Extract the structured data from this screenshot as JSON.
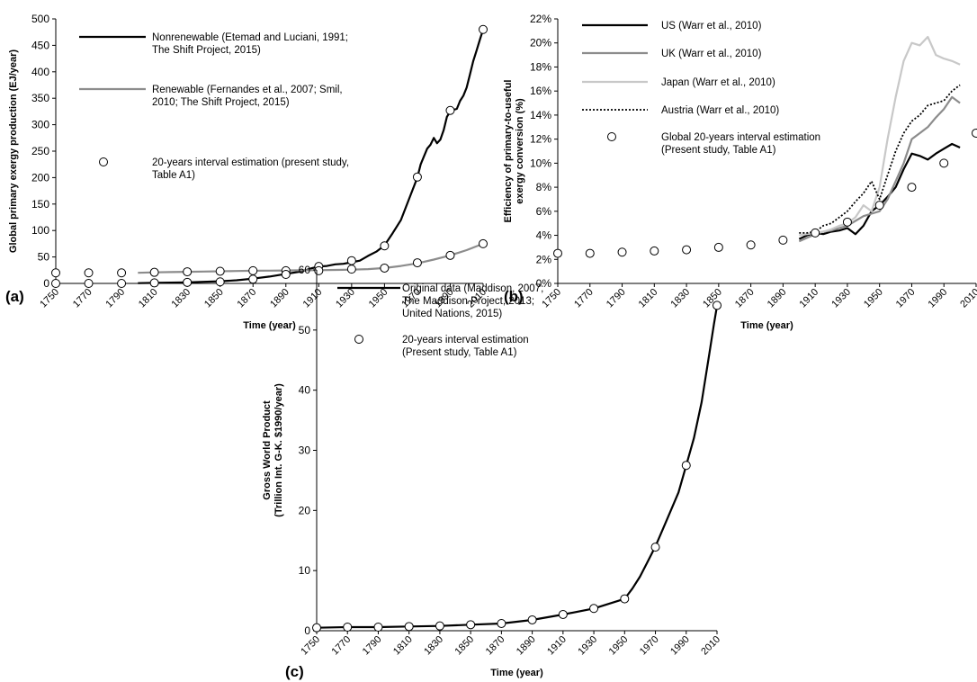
{
  "chart_data": [
    {
      "panel_label": "(a)",
      "type": "line",
      "xlabel": "Time (year)",
      "ylabel": "Global primary exergy production (EJ/year)",
      "xlim": [
        1750,
        2010
      ],
      "ylim": [
        0,
        500
      ],
      "xticks": [
        1750,
        1770,
        1790,
        1810,
        1830,
        1850,
        1870,
        1890,
        1910,
        1930,
        1950,
        1970,
        1990,
        2010
      ],
      "yticks": [
        0,
        50,
        100,
        150,
        200,
        250,
        300,
        350,
        400,
        450,
        500
      ],
      "grid": false,
      "legend_position": "top-left",
      "series": [
        {
          "name": "Nonrenewable (Etemad and Luciani, 1991; The Shift Project, 2015)",
          "color": "#000000",
          "x": [
            1800,
            1810,
            1820,
            1830,
            1840,
            1850,
            1860,
            1870,
            1880,
            1890,
            1900,
            1905,
            1910,
            1915,
            1920,
            1925,
            1930,
            1935,
            1940,
            1945,
            1950,
            1955,
            1960,
            1965,
            1970,
            1972,
            1974,
            1976,
            1978,
            1980,
            1982,
            1984,
            1986,
            1988,
            1990,
            1992,
            1994,
            1996,
            1998,
            2000,
            2002,
            2004,
            2006,
            2008,
            2010
          ],
          "y": [
            0.5,
            1,
            1.5,
            2,
            3,
            4,
            6,
            9,
            13,
            18,
            23,
            28,
            32,
            33,
            36,
            37,
            40,
            43,
            52,
            60,
            72,
            95,
            120,
            160,
            200,
            225,
            240,
            255,
            262,
            275,
            265,
            272,
            290,
            315,
            325,
            328,
            330,
            345,
            355,
            370,
            395,
            420,
            440,
            460,
            480
          ]
        },
        {
          "name": "Renewable (Fernandes et al., 2007; Smil, 2010; The Shift Project, 2015)",
          "color": "#8c8c8c",
          "x": [
            1800,
            1810,
            1820,
            1830,
            1840,
            1850,
            1860,
            1870,
            1880,
            1890,
            1900,
            1910,
            1920,
            1930,
            1940,
            1950,
            1960,
            1970,
            1980,
            1990,
            2000,
            2010
          ],
          "y": [
            20,
            21,
            21.5,
            22,
            22.5,
            23,
            23.5,
            24,
            24.2,
            24.5,
            24.8,
            25,
            25.5,
            26,
            27,
            29,
            33,
            38,
            45,
            53,
            63,
            75
          ]
        },
        {
          "name": "20-years interval estimation (present study, Table A1)",
          "marker": "open-circle",
          "x": [
            1750,
            1770,
            1790,
            1810,
            1830,
            1850,
            1870,
            1890,
            1910,
            1930,
            1950,
            1970,
            1990,
            2010
          ],
          "y": [
            20,
            20,
            20,
            21,
            22,
            23,
            24,
            24,
            32,
            43,
            71,
            201,
            327,
            480
          ]
        },
        {
          "name": "",
          "marker": "open-circle",
          "x": [
            1750,
            1770,
            1790,
            1810,
            1830,
            1850,
            1870,
            1890,
            1910,
            1930,
            1950,
            1970,
            1990,
            2010
          ],
          "y": [
            0,
            0,
            0,
            1,
            2,
            3,
            8,
            17,
            24,
            27,
            29,
            39,
            53,
            75
          ]
        }
      ]
    },
    {
      "panel_label": "(b)",
      "type": "line",
      "xlabel": "Time (year)",
      "ylabel_line1": "Efficiency of primary-to-useful",
      "ylabel_line2": "exergy conversion (%)",
      "xlim": [
        1750,
        2010
      ],
      "ylim": [
        0,
        22
      ],
      "xticks": [
        1750,
        1770,
        1790,
        1810,
        1830,
        1850,
        1870,
        1890,
        1910,
        1930,
        1950,
        1970,
        1990,
        2010
      ],
      "yticks": [
        0,
        2,
        4,
        6,
        8,
        10,
        12,
        14,
        16,
        18,
        20,
        22
      ],
      "ytick_labels": [
        "0%",
        "2%",
        "4%",
        "6%",
        "8%",
        "10%",
        "12%",
        "14%",
        "16%",
        "18%",
        "20%",
        "22%"
      ],
      "grid": false,
      "legend_position": "top-left",
      "series": [
        {
          "name": "US (Warr et al., 2010)",
          "color": "#000000",
          "x": [
            1900,
            1905,
            1910,
            1915,
            1920,
            1925,
            1930,
            1935,
            1940,
            1945,
            1950,
            1955,
            1960,
            1965,
            1970,
            1975,
            1980,
            1985,
            1990,
            1995,
            2000
          ],
          "y": [
            3.7,
            4.0,
            4.2,
            4.1,
            4.3,
            4.4,
            4.6,
            4.1,
            4.8,
            6.0,
            6.5,
            7.2,
            8.0,
            9.5,
            10.8,
            10.6,
            10.3,
            10.8,
            11.2,
            11.6,
            11.3
          ]
        },
        {
          "name": "UK (Warr et al., 2010)",
          "color": "#8c8c8c",
          "x": [
            1900,
            1905,
            1910,
            1915,
            1920,
            1925,
            1930,
            1935,
            1940,
            1945,
            1950,
            1955,
            1960,
            1965,
            1970,
            1975,
            1980,
            1985,
            1990,
            1995,
            2000
          ],
          "y": [
            3.5,
            3.8,
            4.1,
            4.3,
            4.4,
            4.6,
            4.8,
            5.2,
            5.6,
            5.8,
            6.0,
            7.0,
            8.5,
            10.0,
            12.0,
            12.5,
            13.0,
            13.8,
            14.5,
            15.5,
            15.0
          ]
        },
        {
          "name": "Japan (Warr et al., 2010)",
          "color": "#c8c8c8",
          "x": [
            1900,
            1905,
            1910,
            1915,
            1920,
            1925,
            1930,
            1935,
            1940,
            1945,
            1950,
            1955,
            1960,
            1965,
            1970,
            1975,
            1980,
            1985,
            1990,
            1995,
            2000
          ],
          "y": [
            4.0,
            4.1,
            4.2,
            4.3,
            4.5,
            4.8,
            5.0,
            5.5,
            6.5,
            6.0,
            8.0,
            12.0,
            15.5,
            18.5,
            20.0,
            19.8,
            20.5,
            19.0,
            18.7,
            18.5,
            18.2
          ]
        },
        {
          "name": "Austria (Warr et al., 2010)",
          "color": "#000000",
          "dash": "dotted",
          "x": [
            1900,
            1905,
            1910,
            1915,
            1920,
            1925,
            1930,
            1935,
            1940,
            1945,
            1950,
            1955,
            1960,
            1965,
            1970,
            1975,
            1980,
            1985,
            1990,
            1995,
            2000
          ],
          "y": [
            4.2,
            4.2,
            4.3,
            4.8,
            5.0,
            5.5,
            6.0,
            6.8,
            7.5,
            8.5,
            7.0,
            9.0,
            11.0,
            12.5,
            13.5,
            14.0,
            14.8,
            15.0,
            15.2,
            16.0,
            16.5
          ]
        },
        {
          "name": "Global 20-years interval estimation (Present study, Table A1)",
          "marker": "open-circle",
          "x": [
            1750,
            1770,
            1790,
            1810,
            1830,
            1850,
            1870,
            1890,
            1910,
            1930,
            1950,
            1970,
            1990,
            2010
          ],
          "y": [
            2.5,
            2.5,
            2.6,
            2.7,
            2.8,
            3.0,
            3.2,
            3.6,
            4.2,
            5.1,
            6.5,
            8.0,
            10.0,
            12.5
          ]
        }
      ]
    },
    {
      "panel_label": "(c)",
      "type": "line",
      "xlabel": "Time (year)",
      "ylabel_line1": "Gross World Product",
      "ylabel_line2": "(Trillion Int. G-K. $1990/year)",
      "xlim": [
        1750,
        2010
      ],
      "ylim": [
        0,
        60
      ],
      "xticks": [
        1750,
        1770,
        1790,
        1810,
        1830,
        1850,
        1870,
        1890,
        1910,
        1930,
        1950,
        1970,
        1990,
        2010
      ],
      "yticks": [
        0,
        10,
        20,
        30,
        40,
        50,
        60
      ],
      "grid": false,
      "legend_position": "top-left",
      "series": [
        {
          "name": "Original data (Maddison, 2007; The Maddison Project, 2013; United Nations, 2015)",
          "color": "#000000",
          "x": [
            1750,
            1770,
            1790,
            1810,
            1830,
            1850,
            1870,
            1890,
            1910,
            1930,
            1940,
            1950,
            1955,
            1960,
            1965,
            1970,
            1975,
            1980,
            1985,
            1990,
            1995,
            2000,
            2005,
            2008,
            2010
          ],
          "y": [
            0.5,
            0.6,
            0.6,
            0.7,
            0.8,
            1.0,
            1.2,
            1.8,
            2.7,
            3.7,
            4.5,
            5.3,
            7.0,
            9.0,
            11.5,
            14.0,
            17.0,
            20.0,
            23.0,
            27.5,
            32.0,
            38.0,
            46.0,
            51.0,
            54.0
          ]
        },
        {
          "name": "20-years interval estimation (Present study, Table A1)",
          "marker": "open-circle",
          "x": [
            1750,
            1770,
            1790,
            1810,
            1830,
            1850,
            1870,
            1890,
            1910,
            1930,
            1950,
            1970,
            1990,
            2010
          ],
          "y": [
            0.5,
            0.6,
            0.6,
            0.7,
            0.8,
            1.0,
            1.2,
            1.8,
            2.7,
            3.7,
            5.3,
            13.9,
            27.5,
            54.1
          ]
        }
      ]
    }
  ]
}
